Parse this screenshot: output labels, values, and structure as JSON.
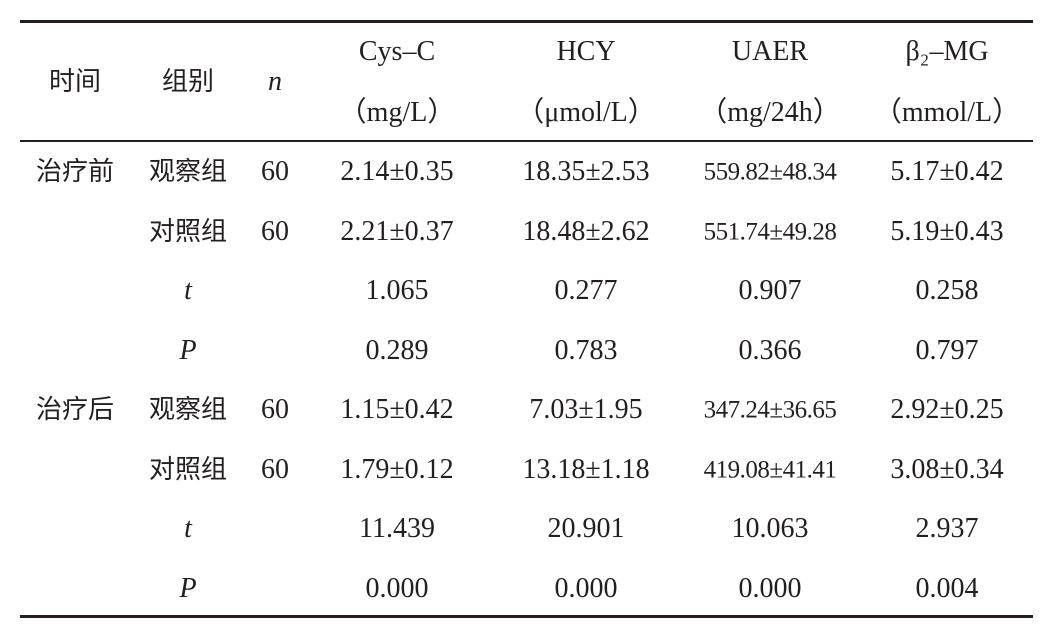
{
  "table": {
    "header": [
      {
        "label": "时间"
      },
      {
        "label": "组别"
      },
      {
        "label": "n"
      },
      {
        "label": "Cys–C",
        "unit": "（mg/L）"
      },
      {
        "label": "HCY",
        "unit": "（μmol/L）"
      },
      {
        "label": "UAER",
        "unit": "（mg/24h）"
      },
      {
        "label": "β₂–MG",
        "unit": "（mmol/L）"
      }
    ],
    "blocks": [
      {
        "time": "治疗前",
        "rows": [
          {
            "group": "观察组",
            "n": 60,
            "values": [
              "2.14±0.35",
              "18.35±2.53",
              "559.82±48.34",
              "5.17±0.42"
            ]
          },
          {
            "group": "对照组",
            "n": 60,
            "values": [
              "2.21±0.37",
              "18.48±2.62",
              "551.74±49.28",
              "5.19±0.43"
            ]
          },
          {
            "group": "t",
            "values": [
              "1.065",
              "0.277",
              "0.907",
              "0.258"
            ]
          },
          {
            "group": "P",
            "values": [
              "0.289",
              "0.783",
              "0.366",
              "0.797"
            ]
          }
        ]
      },
      {
        "time": "治疗后",
        "rows": [
          {
            "group": "观察组",
            "n": 60,
            "values": [
              "1.15±0.42",
              "7.03±1.95",
              "347.24±36.65",
              "2.92±0.25"
            ]
          },
          {
            "group": "对照组",
            "n": 60,
            "values": [
              "1.79±0.12",
              "13.18±1.18",
              "419.08±41.41",
              "3.08±0.34"
            ]
          },
          {
            "group": "t",
            "values": [
              "11.439",
              "20.901",
              "10.063",
              "2.937"
            ]
          },
          {
            "group": "P",
            "values": [
              "0.000",
              "0.000",
              "0.000",
              "0.004"
            ]
          }
        ]
      }
    ]
  }
}
